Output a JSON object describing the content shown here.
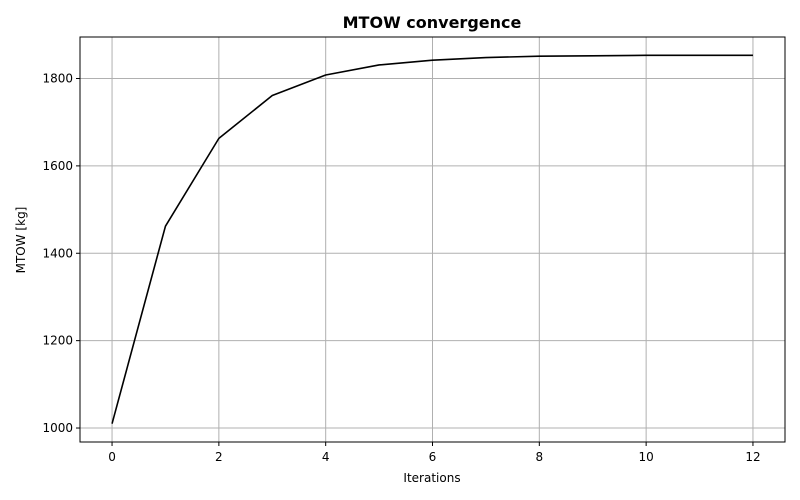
{
  "chart_data": {
    "type": "line",
    "title": "MTOW convergence",
    "xlabel": "Iterations",
    "ylabel": "MTOW [kg]",
    "xlim": [
      -0.6,
      12.6
    ],
    "ylim": [
      968,
      1895
    ],
    "xticks": [
      0,
      2,
      4,
      6,
      8,
      10,
      12
    ],
    "yticks": [
      1000,
      1200,
      1400,
      1600,
      1800
    ],
    "grid": true,
    "colors": {
      "line": "#000000",
      "grid": "#b0b0b0",
      "axes": "#000000"
    },
    "series": [
      {
        "x": [
          0,
          1,
          2,
          3,
          4,
          5,
          6,
          7,
          8,
          9,
          10,
          11,
          12
        ],
        "y": [
          1010,
          1462,
          1663,
          1761,
          1808,
          1831,
          1842,
          1848,
          1851,
          1852,
          1853,
          1853,
          1853
        ]
      }
    ]
  }
}
